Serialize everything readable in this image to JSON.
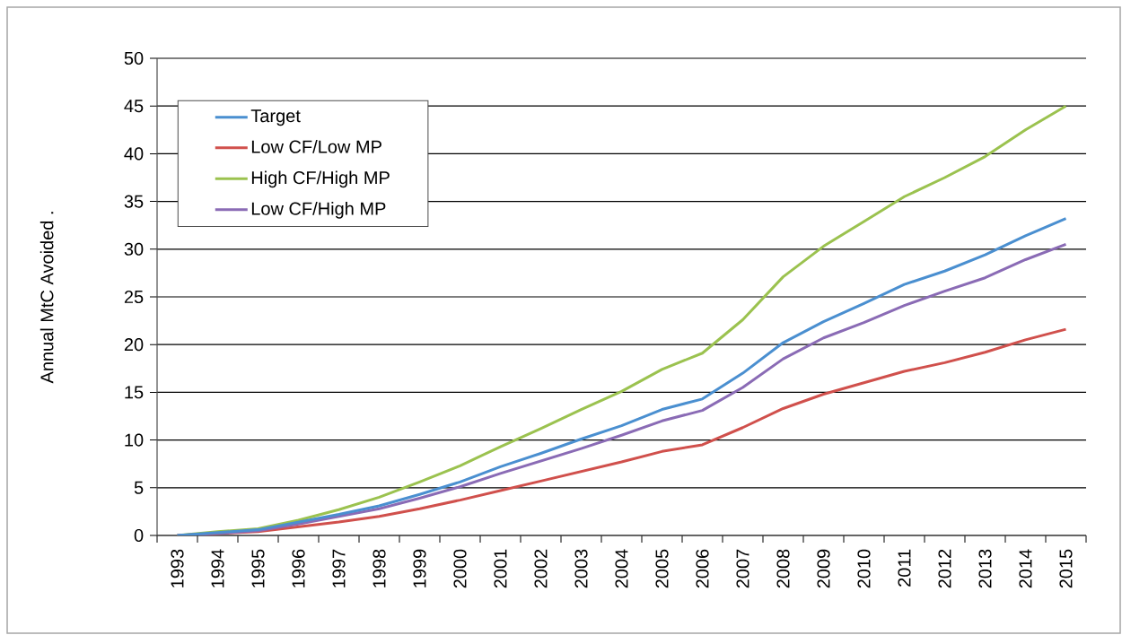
{
  "chart_data": {
    "type": "line",
    "ylabel": "Annual MtC Avoided  .",
    "categories": [
      "1993",
      "1994",
      "1995",
      "1996",
      "1997",
      "1998",
      "1999",
      "2000",
      "2001",
      "2002",
      "2003",
      "2004",
      "2005",
      "2006",
      "2007",
      "2008",
      "2009",
      "2010",
      "2011",
      "2012",
      "2013",
      "2014",
      "2015"
    ],
    "series": [
      {
        "name": "Target",
        "color": "#4a8fd0",
        "values": [
          0,
          0.3,
          0.6,
          1.4,
          2.2,
          3.1,
          4.3,
          5.6,
          7.2,
          8.6,
          10.1,
          11.5,
          13.2,
          14.3,
          17.0,
          20.2,
          22.4,
          24.3,
          26.3,
          27.7,
          29.4,
          31.4,
          33.2
        ]
      },
      {
        "name": "Low CF/Low MP",
        "color": "#d0504c",
        "values": [
          0,
          0.2,
          0.4,
          0.9,
          1.4,
          2.0,
          2.8,
          3.7,
          4.7,
          5.7,
          6.7,
          7.7,
          8.8,
          9.5,
          11.3,
          13.3,
          14.8,
          16.0,
          17.2,
          18.1,
          19.2,
          20.5,
          21.6
        ]
      },
      {
        "name": "High CF/High MP",
        "color": "#9bc24f",
        "values": [
          0,
          0.4,
          0.7,
          1.6,
          2.7,
          4.0,
          5.6,
          7.3,
          9.3,
          11.2,
          13.2,
          15.1,
          17.4,
          19.1,
          22.6,
          27.1,
          30.3,
          32.9,
          35.5,
          37.5,
          39.7,
          42.5,
          45.0
        ]
      },
      {
        "name": "Low CF/High MP",
        "color": "#8a6bb5",
        "values": [
          0,
          0.2,
          0.5,
          1.2,
          2.0,
          2.8,
          3.9,
          5.1,
          6.5,
          7.8,
          9.1,
          10.5,
          12.0,
          13.1,
          15.5,
          18.5,
          20.7,
          22.3,
          24.1,
          25.6,
          27.0,
          28.9,
          30.5
        ]
      }
    ],
    "ylim": [
      0,
      50
    ],
    "yticks": [
      0,
      5,
      10,
      15,
      20,
      25,
      30,
      35,
      40,
      45,
      50
    ],
    "grid": "y",
    "legend": "top left",
    "marker": "none",
    "line_style": "solid"
  }
}
